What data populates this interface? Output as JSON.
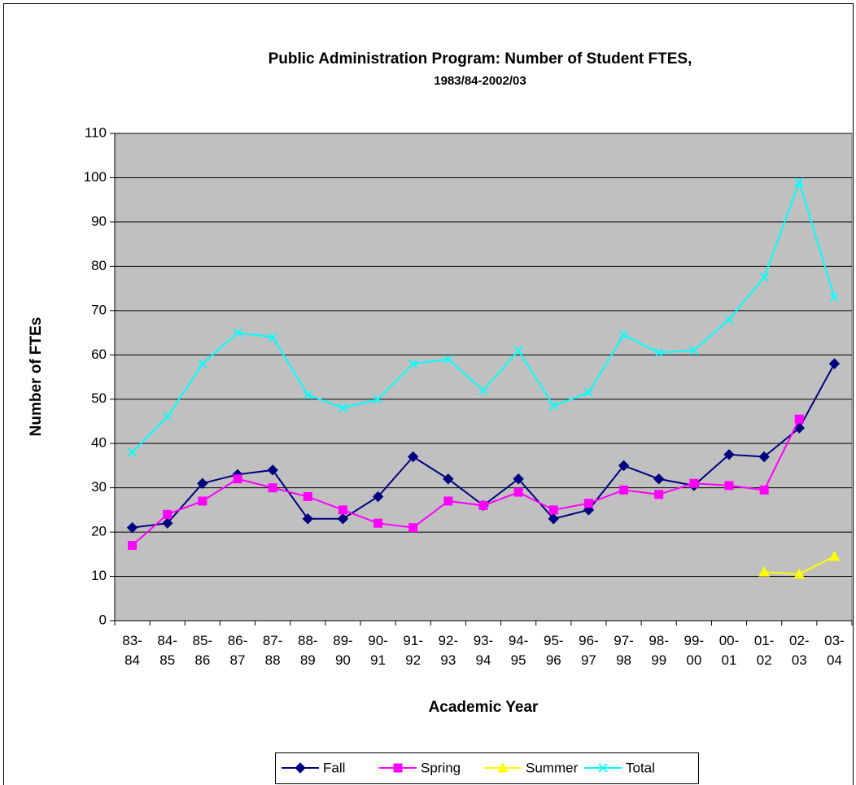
{
  "chart_data": {
    "type": "line",
    "title": "Public Administration Program:  Number of Student FTES,",
    "subtitle": "1983/84-2002/03",
    "x_label": "Academic Year",
    "y_label": "Number of FTEs",
    "categories": [
      "83-84",
      "84-85",
      "85-86",
      "86-87",
      "87-88",
      "88-89",
      "89-90",
      "90-91",
      "91-92",
      "92-93",
      "93-94",
      "94-95",
      "95-96",
      "96-97",
      "97-98",
      "98-99",
      "99-00",
      "00-01",
      "01-02",
      "02-03",
      "03-04"
    ],
    "series": [
      {
        "name": "Fall",
        "color": "#000080",
        "marker": "diamond",
        "values": [
          21,
          22,
          31,
          33,
          34,
          23,
          23,
          28,
          37,
          32,
          26,
          32,
          23,
          25,
          35,
          32,
          30.5,
          37.5,
          37,
          43.5,
          58
        ]
      },
      {
        "name": "Spring",
        "color": "#ff00ff",
        "marker": "square",
        "values": [
          17,
          24,
          27,
          32,
          30,
          28,
          25,
          22,
          21,
          27,
          26,
          29,
          25,
          26.5,
          29.5,
          28.5,
          31,
          30.5,
          29.5,
          45.5,
          null
        ]
      },
      {
        "name": "Summer",
        "color": "#ffff00",
        "marker": "triangle",
        "values": [
          null,
          null,
          null,
          null,
          null,
          null,
          null,
          null,
          null,
          null,
          null,
          null,
          null,
          null,
          null,
          null,
          null,
          null,
          11,
          10.5,
          14.5
        ]
      },
      {
        "name": "Total",
        "color": "#00ffff",
        "marker": "x",
        "values": [
          38,
          46,
          58,
          65,
          64,
          51,
          48,
          50,
          58,
          59,
          52,
          61,
          48.5,
          51.5,
          64.5,
          60.5,
          61,
          68,
          77.5,
          99,
          73
        ]
      }
    ],
    "ylim": [
      0,
      110
    ],
    "yticks": [
      0,
      10,
      20,
      30,
      40,
      50,
      60,
      70,
      80,
      90,
      100,
      110
    ],
    "grid": true,
    "plot_background": "#c0c0c0",
    "legend": "bottom"
  }
}
